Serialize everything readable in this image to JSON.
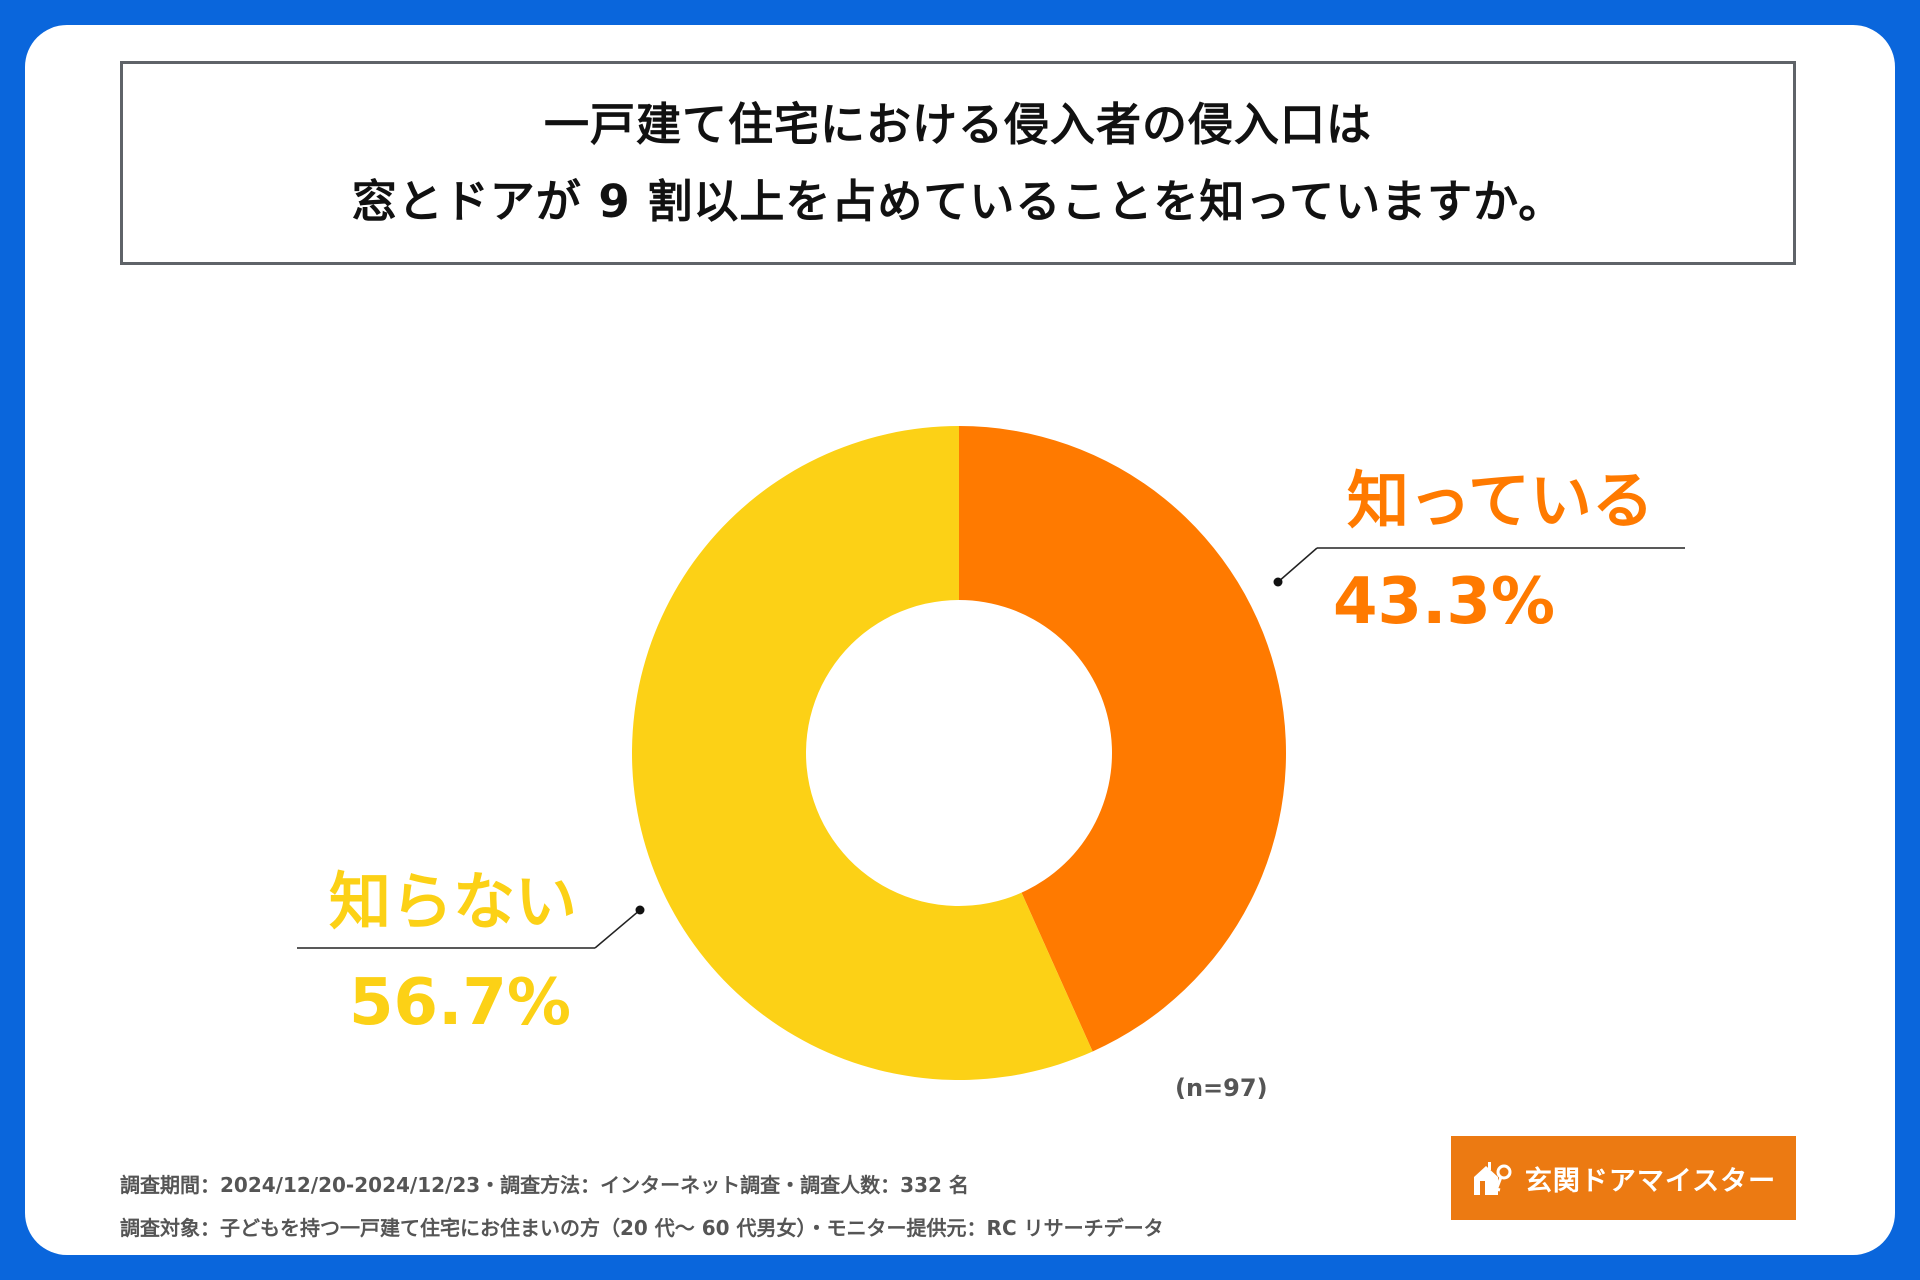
{
  "chart_data": {
    "type": "pie",
    "variant": "donut",
    "title": "一戸建て住宅における侵入者の侵入口は\n窓とドアが 9 割以上を占めていることを知っていますか。",
    "title_lines": [
      "一戸建て住宅における侵入者の侵入口は",
      "窓とドアが 9 割以上を占めていることを知っていますか。"
    ],
    "categories": [
      "知っている",
      "知らない"
    ],
    "values": [
      43.3,
      56.7
    ],
    "value_labels": [
      "43.3%",
      "56.7%"
    ],
    "colors": [
      "#ff7a00",
      "#fcd116"
    ],
    "sample_size": "(n=97)"
  },
  "footer": {
    "line1": "調査期間：2024/12/20-2024/12/23・調査方法：インターネット調査・調査人数：332 名",
    "line2": "調査対象：子どもを持つ一戸建て住宅にお住まいの方（20 代～ 60 代男女）・モニター提供元：RC リサーチデータ"
  },
  "brand": {
    "name": "玄関ドアマイスター",
    "icon": "house-key-icon",
    "background": "#ec7a12"
  },
  "colors": {
    "frame": "#0a66dc",
    "card": "#ffffff"
  }
}
